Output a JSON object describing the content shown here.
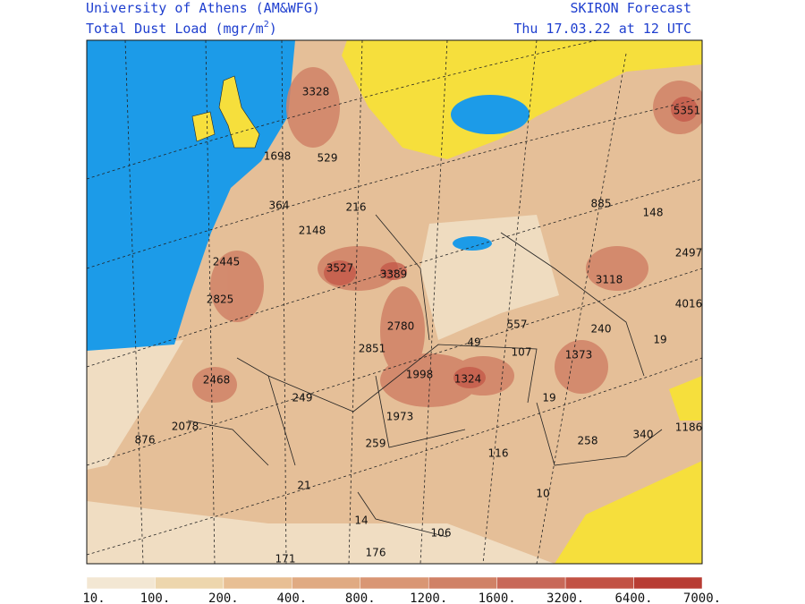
{
  "header": {
    "institution": "University of Athens (AM&WFG)",
    "product": [
      "Total Dust Load (mgr/m",
      "2",
      ")"
    ],
    "model": "SKIRON Forecast",
    "valid_time": "Thu 17.03.22 at 12 UTC"
  },
  "map_labels": [
    "3328",
    "5351",
    "1698",
    "529",
    "885",
    "148",
    "364",
    "216",
    "2148",
    "2497",
    "2445",
    "3527",
    "3389",
    "3118",
    "2825",
    "4016",
    "2780",
    "557",
    "240",
    "19",
    "49",
    "2851",
    "107",
    "1373",
    "2468",
    "1998",
    "1324",
    "249",
    "19",
    "1973",
    "2078",
    "876",
    "259",
    "340",
    "1186",
    "258",
    "116",
    "21",
    "10",
    "14",
    "106",
    "171",
    "176"
  ],
  "colorbar": {
    "labels": [
      "10.",
      "100.",
      "200.",
      "400.",
      "800.",
      "1200.",
      "1600.",
      "3200.",
      "6400.",
      "7000."
    ],
    "colors": [
      "#f3e7d3",
      "#edd6ad",
      "#e8bf94",
      "#e0aa82",
      "#d99674",
      "#d08166",
      "#c86858",
      "#c25244",
      "#b83c33"
    ]
  }
}
